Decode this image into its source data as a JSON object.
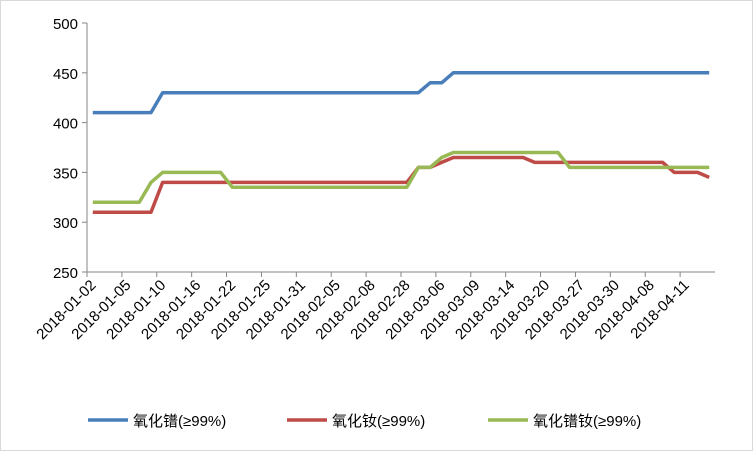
{
  "chart_data": {
    "type": "line",
    "categories": [
      "2018-01-02",
      null,
      null,
      "2018-01-05",
      null,
      null,
      "2018-01-10",
      null,
      null,
      "2018-01-16",
      null,
      null,
      "2018-01-22",
      null,
      null,
      "2018-01-25",
      null,
      null,
      "2018-01-31",
      null,
      null,
      "2018-02-05",
      null,
      null,
      "2018-02-08",
      null,
      null,
      "2018-02-28",
      null,
      null,
      "2018-03-06",
      null,
      null,
      "2018-03-09",
      null,
      null,
      "2018-03-14",
      null,
      null,
      "2018-03-20",
      null,
      null,
      "2018-03-27",
      null,
      null,
      "2018-03-30",
      null,
      null,
      "2018-04-08",
      null,
      null,
      "2018-04-11",
      null,
      null
    ],
    "series": [
      {
        "name": "氧化镨(≥99%)",
        "color": "#4a7ebb",
        "values": [
          410,
          410,
          410,
          410,
          410,
          410,
          430,
          430,
          430,
          430,
          430,
          430,
          430,
          430,
          430,
          430,
          430,
          430,
          430,
          430,
          430,
          430,
          430,
          430,
          430,
          430,
          430,
          430,
          430,
          440,
          440,
          450,
          450,
          450,
          450,
          450,
          450,
          450,
          450,
          450,
          450,
          450,
          450,
          450,
          450,
          450,
          450,
          450,
          450,
          450,
          450,
          450,
          450,
          450
        ]
      },
      {
        "name": "氧化钕(≥99%)",
        "color": "#be4b48",
        "values": [
          310,
          310,
          310,
          310,
          310,
          310,
          340,
          340,
          340,
          340,
          340,
          340,
          340,
          340,
          340,
          340,
          340,
          340,
          340,
          340,
          340,
          340,
          340,
          340,
          340,
          340,
          340,
          340,
          355,
          355,
          360,
          365,
          365,
          365,
          365,
          365,
          365,
          365,
          360,
          360,
          360,
          360,
          360,
          360,
          360,
          360,
          360,
          360,
          360,
          360,
          350,
          350,
          350,
          345
        ]
      },
      {
        "name": "氧化镨钕(≥99%)",
        "color": "#98b954",
        "values": [
          320,
          320,
          320,
          320,
          320,
          340,
          350,
          350,
          350,
          350,
          350,
          350,
          335,
          335,
          335,
          335,
          335,
          335,
          335,
          335,
          335,
          335,
          335,
          335,
          335,
          335,
          335,
          335,
          355,
          355,
          365,
          370,
          370,
          370,
          370,
          370,
          370,
          370,
          370,
          370,
          370,
          355,
          355,
          355,
          355,
          355,
          355,
          355,
          355,
          355,
          355,
          355,
          355,
          355
        ]
      }
    ],
    "ylim": [
      250,
      500
    ],
    "yticks": [
      250,
      300,
      350,
      400,
      450,
      500
    ],
    "grid": false
  }
}
